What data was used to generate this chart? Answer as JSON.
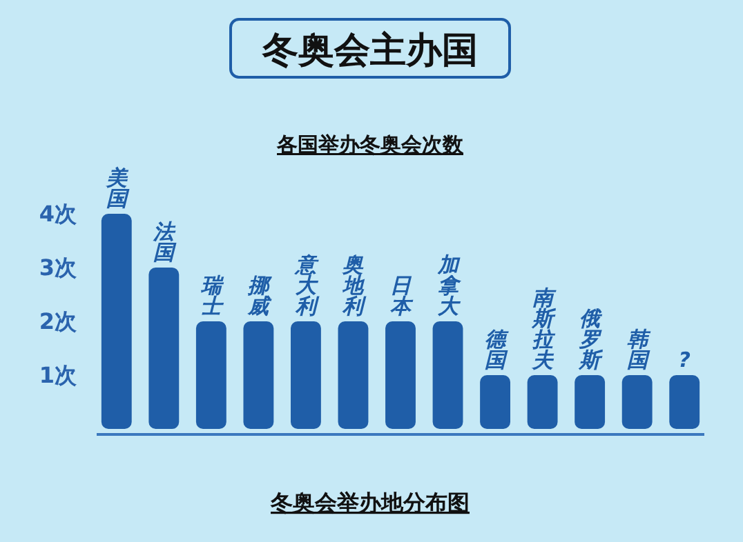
{
  "chart_data": {
    "type": "bar",
    "title": "冬奥会主办国",
    "subtitle": "各国举办冬奥会次数",
    "categories": [
      "美国",
      "法国",
      "瑞士",
      "挪威",
      "意大利",
      "奥地利",
      "日本",
      "加拿大",
      "德国",
      "南斯拉夫",
      "俄罗斯",
      "韩国",
      "?"
    ],
    "values": [
      4,
      3,
      2,
      2,
      2,
      2,
      2,
      2,
      1,
      1,
      1,
      1,
      1
    ],
    "color": "#1f5ea8",
    "ylim": [
      0,
      4
    ],
    "yticks": [
      {
        "value": 1,
        "label": "1次"
      },
      {
        "value": 2,
        "label": "2次"
      },
      {
        "value": 3,
        "label": "3次"
      },
      {
        "value": 4,
        "label": "4次"
      }
    ],
    "grid": false,
    "annotations": [
      "冬奥会举办地分布图"
    ]
  }
}
